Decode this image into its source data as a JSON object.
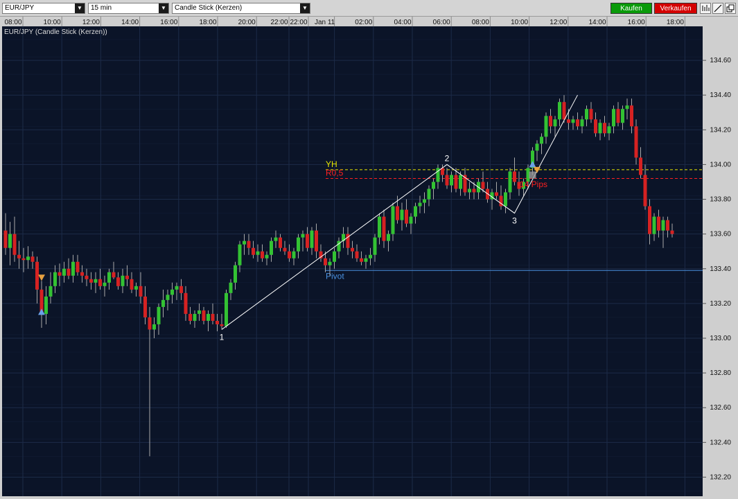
{
  "toolbar": {
    "symbol": "EUR/JPY",
    "interval": "15 min",
    "chart_type": "Candle Stick (Kerzen)",
    "buy_label": "Kaufen",
    "sell_label": "Verkaufen",
    "buy_color": "#0a9a0a",
    "sell_color": "#d40000",
    "tool_icons": [
      "bar-chart-icon",
      "draw-line-icon",
      "detach-window-icon"
    ]
  },
  "chart_data": {
    "type": "candlestick",
    "title": "EUR/JPY (Candle Stick (Kerzen))",
    "x_ticks": [
      "08:00",
      "10:00",
      "12:00",
      "14:00",
      "16:00",
      "18:00",
      "20:00",
      "22:00",
      "22:00",
      "Jan 11",
      "02:00",
      "04:00",
      "06:00",
      "08:00",
      "10:00",
      "12:00",
      "14:00",
      "16:00",
      "18:00"
    ],
    "y_ticks": [
      "134.60",
      "134.40",
      "134.20",
      "134.00",
      "133.80",
      "133.60",
      "133.40",
      "133.20",
      "133.00",
      "132.80",
      "132.60",
      "132.40",
      "132.20"
    ],
    "ylim": [
      132.12,
      134.73
    ],
    "grid": true,
    "colors": {
      "background": "#0b1428",
      "grid": "#1c2b48",
      "up": "#33c233",
      "down": "#d62222",
      "wick": "#a9a9a9",
      "axis_text": "#101010",
      "axis_bg": "#cfcfcf"
    },
    "candles": [
      [
        133.62,
        133.72,
        133.48,
        133.52
      ],
      [
        133.52,
        133.67,
        133.42,
        133.6
      ],
      [
        133.6,
        133.7,
        133.44,
        133.48
      ],
      [
        133.48,
        133.56,
        133.4,
        133.46
      ],
      [
        133.46,
        133.52,
        133.38,
        133.45
      ],
      [
        133.45,
        133.53,
        133.4,
        133.47
      ],
      [
        133.47,
        133.5,
        133.4,
        133.44
      ],
      [
        133.44,
        133.47,
        133.2,
        133.28
      ],
      [
        133.28,
        133.33,
        133.06,
        133.14
      ],
      [
        133.14,
        133.3,
        133.08,
        133.24
      ],
      [
        133.24,
        133.38,
        133.2,
        133.3
      ],
      [
        133.3,
        133.42,
        133.26,
        133.38
      ],
      [
        133.38,
        133.43,
        133.3,
        133.36
      ],
      [
        133.36,
        133.44,
        133.32,
        133.4
      ],
      [
        133.4,
        133.46,
        133.34,
        133.36
      ],
      [
        133.36,
        133.48,
        133.32,
        133.44
      ],
      [
        133.44,
        133.48,
        133.36,
        133.38
      ],
      [
        133.38,
        133.42,
        133.32,
        133.36
      ],
      [
        133.36,
        133.4,
        133.3,
        133.34
      ],
      [
        133.34,
        133.38,
        133.28,
        133.32
      ],
      [
        133.32,
        133.38,
        133.26,
        133.34
      ],
      [
        133.34,
        133.4,
        133.28,
        133.3
      ],
      [
        133.3,
        133.36,
        133.24,
        133.32
      ],
      [
        133.32,
        133.4,
        133.28,
        133.38
      ],
      [
        133.38,
        133.44,
        133.34,
        133.35
      ],
      [
        133.35,
        133.38,
        133.28,
        133.3
      ],
      [
        133.3,
        133.4,
        133.26,
        133.36
      ],
      [
        133.36,
        133.42,
        133.3,
        133.34
      ],
      [
        133.34,
        133.38,
        133.26,
        133.28
      ],
      [
        133.28,
        133.32,
        133.24,
        133.3
      ],
      [
        133.3,
        133.38,
        133.2,
        133.24
      ],
      [
        133.24,
        133.3,
        133.08,
        133.12
      ],
      [
        133.12,
        133.18,
        132.32,
        133.05
      ],
      [
        133.05,
        133.12,
        133.0,
        133.08
      ],
      [
        133.08,
        133.2,
        133.02,
        133.18
      ],
      [
        133.18,
        133.28,
        133.12,
        133.22
      ],
      [
        133.22,
        133.28,
        133.16,
        133.25
      ],
      [
        133.25,
        133.32,
        133.2,
        133.28
      ],
      [
        133.28,
        133.32,
        133.22,
        133.3
      ],
      [
        133.3,
        133.34,
        133.22,
        133.26
      ],
      [
        133.26,
        133.3,
        133.1,
        133.14
      ],
      [
        133.14,
        133.18,
        133.08,
        133.1
      ],
      [
        133.1,
        133.16,
        133.06,
        133.14
      ],
      [
        133.14,
        133.2,
        133.1,
        133.16
      ],
      [
        133.16,
        133.18,
        133.08,
        133.1
      ],
      [
        133.1,
        133.16,
        133.04,
        133.14
      ],
      [
        133.14,
        133.2,
        133.08,
        133.1
      ],
      [
        133.1,
        133.14,
        133.04,
        133.08
      ],
      [
        133.08,
        133.14,
        133.05,
        133.07
      ],
      [
        133.07,
        133.28,
        133.06,
        133.26
      ],
      [
        133.26,
        133.34,
        133.22,
        133.32
      ],
      [
        133.32,
        133.44,
        133.28,
        133.42
      ],
      [
        133.42,
        133.56,
        133.38,
        133.54
      ],
      [
        133.54,
        133.6,
        133.48,
        133.56
      ],
      [
        133.56,
        133.6,
        133.48,
        133.52
      ],
      [
        133.52,
        133.56,
        133.46,
        133.48
      ],
      [
        133.48,
        133.54,
        133.44,
        133.5
      ],
      [
        133.5,
        133.54,
        133.44,
        133.46
      ],
      [
        133.46,
        133.5,
        133.42,
        133.48
      ],
      [
        133.48,
        133.58,
        133.44,
        133.56
      ],
      [
        133.56,
        133.62,
        133.52,
        133.58
      ],
      [
        133.58,
        133.6,
        133.5,
        133.52
      ],
      [
        133.52,
        133.56,
        133.48,
        133.5
      ],
      [
        133.5,
        133.54,
        133.44,
        133.46
      ],
      [
        133.46,
        133.52,
        133.42,
        133.5
      ],
      [
        133.5,
        133.6,
        133.46,
        133.58
      ],
      [
        133.58,
        133.62,
        133.5,
        133.6
      ],
      [
        133.6,
        133.64,
        133.5,
        133.52
      ],
      [
        133.52,
        133.64,
        133.48,
        133.62
      ],
      [
        133.62,
        133.66,
        133.46,
        133.5
      ],
      [
        133.5,
        133.54,
        133.44,
        133.46
      ],
      [
        133.46,
        133.5,
        133.38,
        133.42
      ],
      [
        133.42,
        133.46,
        133.36,
        133.44
      ],
      [
        133.44,
        133.52,
        133.4,
        133.5
      ],
      [
        133.5,
        133.58,
        133.46,
        133.56
      ],
      [
        133.56,
        133.64,
        133.52,
        133.6
      ],
      [
        133.6,
        133.64,
        133.48,
        133.52
      ],
      [
        133.52,
        133.56,
        133.46,
        133.5
      ],
      [
        133.5,
        133.54,
        133.44,
        133.46
      ],
      [
        133.46,
        133.5,
        133.42,
        133.44
      ],
      [
        133.44,
        133.48,
        133.4,
        133.46
      ],
      [
        133.46,
        133.52,
        133.42,
        133.48
      ],
      [
        133.48,
        133.6,
        133.44,
        133.58
      ],
      [
        133.58,
        133.72,
        133.54,
        133.7
      ],
      [
        133.7,
        133.74,
        133.52,
        133.56
      ],
      [
        133.56,
        133.62,
        133.5,
        133.6
      ],
      [
        133.6,
        133.78,
        133.56,
        133.76
      ],
      [
        133.76,
        133.82,
        133.66,
        133.68
      ],
      [
        133.68,
        133.78,
        133.62,
        133.74
      ],
      [
        133.74,
        133.8,
        133.64,
        133.66
      ],
      [
        133.66,
        133.72,
        133.6,
        133.7
      ],
      [
        133.7,
        133.78,
        133.66,
        133.76
      ],
      [
        133.76,
        133.82,
        133.72,
        133.78
      ],
      [
        133.78,
        133.84,
        133.72,
        133.8
      ],
      [
        133.8,
        133.88,
        133.76,
        133.86
      ],
      [
        133.86,
        133.92,
        133.8,
        133.9
      ],
      [
        133.9,
        134.0,
        133.86,
        133.98
      ],
      [
        133.98,
        134.0,
        133.9,
        133.94
      ],
      [
        133.94,
        133.98,
        133.86,
        133.88
      ],
      [
        133.88,
        133.96,
        133.84,
        133.94
      ],
      [
        133.94,
        133.98,
        133.84,
        133.86
      ],
      [
        133.86,
        133.96,
        133.82,
        133.94
      ],
      [
        133.94,
        133.98,
        133.82,
        133.84
      ],
      [
        133.84,
        133.9,
        133.8,
        133.86
      ],
      [
        133.86,
        133.9,
        133.8,
        133.84
      ],
      [
        133.84,
        133.92,
        133.8,
        133.9
      ],
      [
        133.9,
        133.96,
        133.84,
        133.86
      ],
      [
        133.86,
        133.9,
        133.78,
        133.8
      ],
      [
        133.8,
        133.86,
        133.74,
        133.84
      ],
      [
        133.84,
        133.9,
        133.8,
        133.82
      ],
      [
        133.82,
        133.88,
        133.74,
        133.76
      ],
      [
        133.76,
        133.86,
        133.72,
        133.84
      ],
      [
        133.84,
        133.98,
        133.8,
        133.96
      ],
      [
        133.96,
        134.04,
        133.88,
        133.9
      ],
      [
        133.9,
        133.96,
        133.82,
        133.86
      ],
      [
        133.86,
        133.92,
        133.82,
        133.9
      ],
      [
        133.9,
        134.0,
        133.86,
        133.98
      ],
      [
        133.98,
        134.1,
        133.94,
        134.08
      ],
      [
        134.08,
        134.14,
        134.02,
        134.12
      ],
      [
        134.12,
        134.18,
        134.06,
        134.16
      ],
      [
        134.16,
        134.3,
        134.12,
        134.28
      ],
      [
        134.28,
        134.32,
        134.18,
        134.22
      ],
      [
        134.22,
        134.28,
        134.16,
        134.26
      ],
      [
        134.26,
        134.38,
        134.22,
        134.36
      ],
      [
        134.36,
        134.4,
        134.24,
        134.26
      ],
      [
        134.26,
        134.32,
        134.2,
        134.24
      ],
      [
        134.24,
        134.28,
        134.2,
        134.26
      ],
      [
        134.26,
        134.3,
        134.2,
        134.22
      ],
      [
        134.22,
        134.28,
        134.18,
        134.26
      ],
      [
        134.26,
        134.34,
        134.22,
        134.32
      ],
      [
        134.32,
        134.36,
        134.24,
        134.26
      ],
      [
        134.26,
        134.3,
        134.16,
        134.18
      ],
      [
        134.18,
        134.26,
        134.14,
        134.24
      ],
      [
        134.24,
        134.28,
        134.16,
        134.18
      ],
      [
        134.18,
        134.24,
        134.14,
        134.22
      ],
      [
        134.22,
        134.34,
        134.18,
        134.32
      ],
      [
        134.32,
        134.36,
        134.22,
        134.24
      ],
      [
        134.24,
        134.34,
        134.2,
        134.32
      ],
      [
        134.32,
        134.38,
        134.26,
        134.34
      ],
      [
        134.34,
        134.38,
        134.18,
        134.22
      ],
      [
        134.22,
        134.26,
        134.0,
        134.04
      ],
      [
        134.04,
        134.1,
        133.92,
        133.94
      ],
      [
        133.94,
        134.0,
        133.74,
        133.76
      ],
      [
        133.76,
        133.8,
        133.54,
        133.6
      ],
      [
        133.6,
        133.72,
        133.56,
        133.7
      ],
      [
        133.7,
        133.74,
        133.58,
        133.62
      ],
      [
        133.62,
        133.7,
        133.52,
        133.68
      ],
      [
        133.68,
        133.7,
        133.58,
        133.62
      ],
      [
        133.62,
        133.66,
        133.58,
        133.6
      ]
    ],
    "swing_points": [
      {
        "label": "1",
        "index": 48,
        "price": 133.05
      },
      {
        "label": "2",
        "index": 98,
        "price": 134.0
      },
      {
        "label": "3",
        "index": 113,
        "price": 133.72
      },
      {
        "label": "",
        "index": 127,
        "price": 134.4
      }
    ],
    "levels": [
      {
        "label": "YH",
        "price": 133.97,
        "color": "#e8e800",
        "style": "dashed"
      },
      {
        "label": "R0,5",
        "price": 133.92,
        "color": "#ff2020",
        "style": "dashed"
      },
      {
        "label": "Pivot",
        "price": 133.39,
        "color": "#4a90e0",
        "style": "solid"
      }
    ],
    "annotations": [
      {
        "text": "-14 Pips",
        "index": 120,
        "price": 133.89,
        "color": "#ff2020"
      }
    ],
    "markers": [
      {
        "shape": "down-triangle",
        "index": 8,
        "price": 133.35,
        "color": "#e6a040"
      },
      {
        "shape": "up-triangle",
        "index": 8,
        "price": 133.15,
        "color": "#6aa0e6"
      },
      {
        "shape": "up-triangle",
        "index": 117,
        "price": 134.0,
        "color": "#6aa0e6"
      },
      {
        "shape": "down-triangle",
        "index": 118,
        "price": 133.97,
        "color": "#e6a040"
      },
      {
        "shape": "square",
        "index": 117,
        "price": 133.94,
        "color": "#9a9a9a"
      }
    ]
  }
}
